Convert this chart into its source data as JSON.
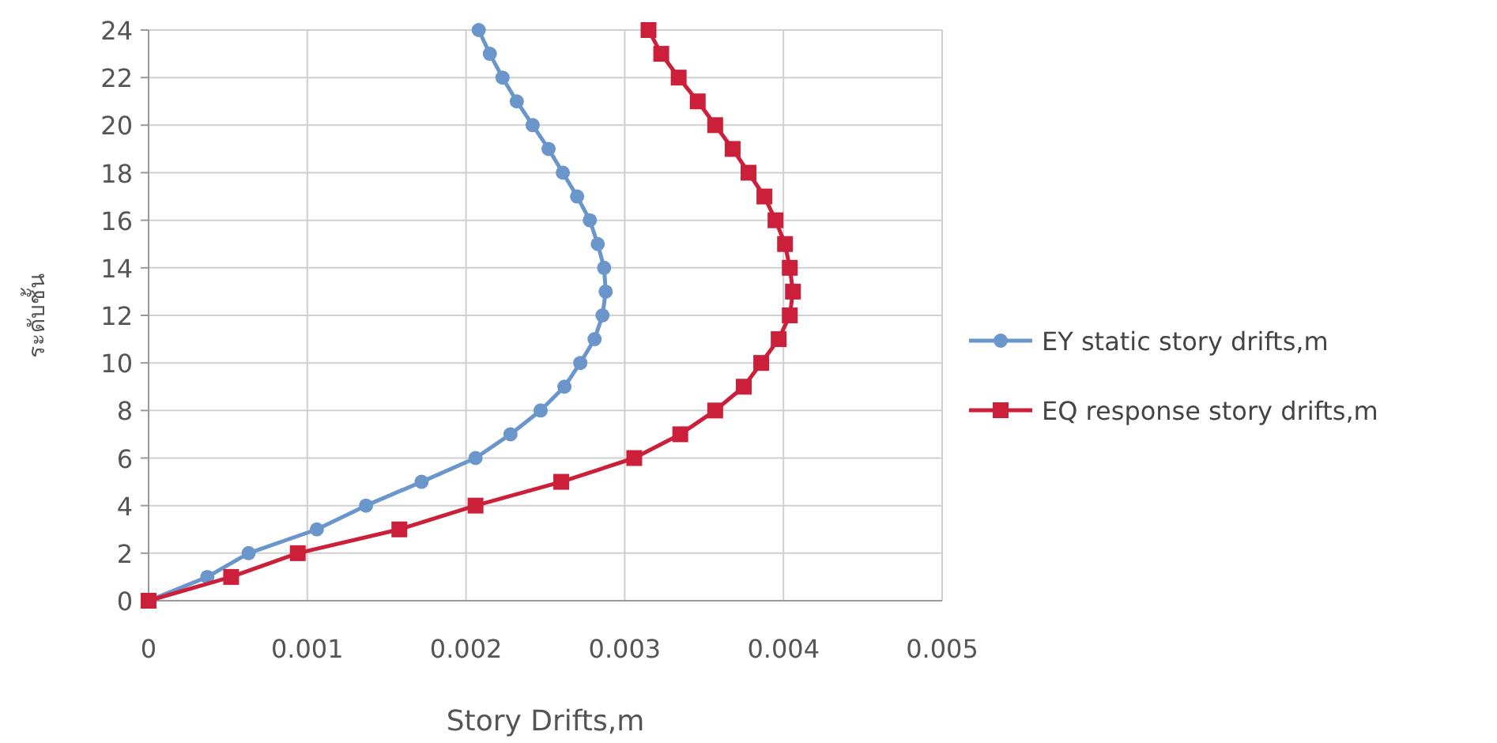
{
  "chart_data": {
    "type": "line",
    "xlabel": "Story Drifts,m",
    "ylabel": "ระดับชั้น",
    "xlim": [
      0,
      0.005
    ],
    "xticks": [
      0,
      0.001,
      0.002,
      0.003,
      0.004,
      0.005
    ],
    "ylim": [
      0,
      24
    ],
    "yticks": [
      0,
      2,
      4,
      6,
      8,
      10,
      12,
      14,
      16,
      18,
      20,
      22,
      24
    ],
    "grid": true,
    "legend": "right",
    "line_style": "solid",
    "series": [
      {
        "name": "EY static story drifts,m",
        "color": "#6a96cc",
        "marker": "circle",
        "x": [
          0,
          0.00037,
          0.00063,
          0.00106,
          0.00137,
          0.00172,
          0.00206,
          0.00228,
          0.00247,
          0.00262,
          0.00272,
          0.00281,
          0.00286,
          0.00288,
          0.00287,
          0.00283,
          0.00278,
          0.0027,
          0.00261,
          0.00252,
          0.00242,
          0.00232,
          0.00223,
          0.00215,
          0.00208
        ],
        "values": [
          0,
          1,
          2,
          3,
          4,
          5,
          6,
          7,
          8,
          9,
          10,
          11,
          12,
          13,
          14,
          15,
          16,
          17,
          18,
          19,
          20,
          21,
          22,
          23,
          24
        ]
      },
      {
        "name": "EQ response story drifts,m",
        "color": "#cc1f3a",
        "marker": "square",
        "x": [
          0,
          0.00052,
          0.00094,
          0.00158,
          0.00206,
          0.0026,
          0.00306,
          0.00335,
          0.00357,
          0.00375,
          0.00386,
          0.00397,
          0.00404,
          0.00406,
          0.00404,
          0.00401,
          0.00395,
          0.00388,
          0.00378,
          0.00368,
          0.00357,
          0.00346,
          0.00334,
          0.00323,
          0.00315
        ],
        "values": [
          0,
          1,
          2,
          3,
          4,
          5,
          6,
          7,
          8,
          9,
          10,
          11,
          12,
          13,
          14,
          15,
          16,
          17,
          18,
          19,
          20,
          21,
          22,
          23,
          24
        ]
      }
    ]
  }
}
